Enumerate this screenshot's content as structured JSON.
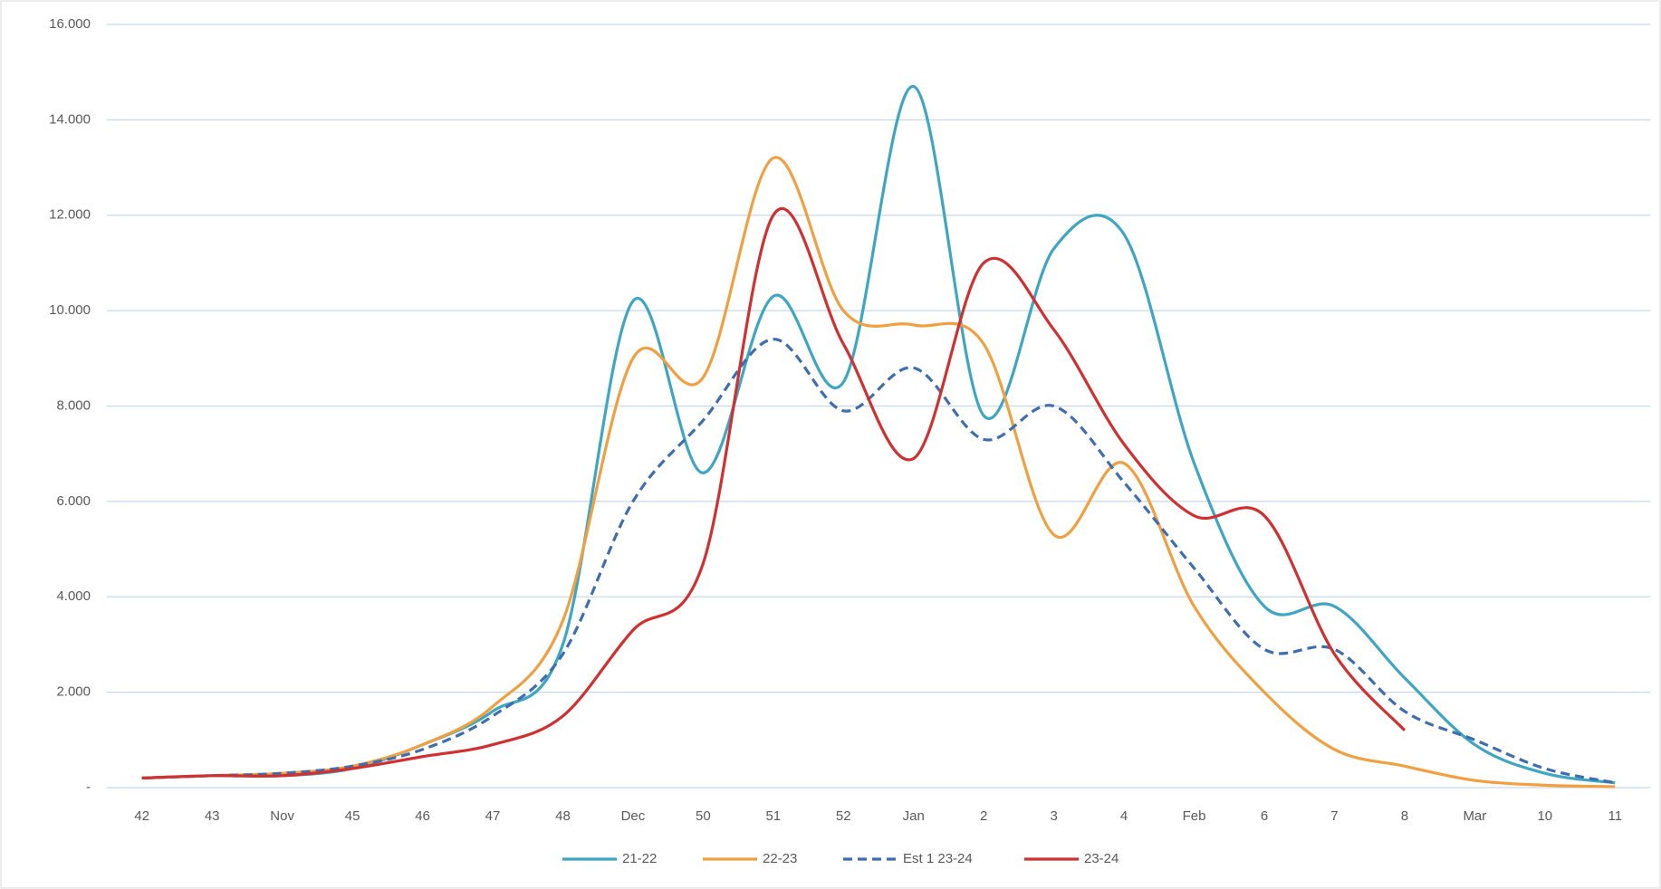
{
  "chart_data": {
    "type": "line",
    "categories": [
      "42",
      "43",
      "Nov",
      "45",
      "46",
      "47",
      "48",
      "Dec",
      "50",
      "51",
      "52",
      "Jan",
      "2",
      "3",
      "4",
      "Feb",
      "6",
      "7",
      "8",
      "Mar",
      "10",
      "11"
    ],
    "series": [
      {
        "name": "21-22",
        "color": "#3ea6c2",
        "dash": false,
        "values": [
          200,
          250,
          250,
          400,
          900,
          1600,
          3000,
          10200,
          6600,
          10300,
          8500,
          14700,
          7800,
          11300,
          11600,
          6800,
          3800,
          3800,
          2300,
          900,
          300,
          100
        ]
      },
      {
        "name": "22-23",
        "color": "#f0a040",
        "dash": false,
        "values": [
          200,
          250,
          300,
          450,
          900,
          1700,
          3500,
          9000,
          8600,
          13200,
          10000,
          9700,
          9300,
          5300,
          6800,
          3800,
          2000,
          800,
          450,
          150,
          50,
          20
        ]
      },
      {
        "name": "Est 1 23-24",
        "color": "#3e6db0",
        "dash": true,
        "values": [
          200,
          250,
          300,
          450,
          800,
          1500,
          2800,
          6000,
          7700,
          9400,
          7900,
          8800,
          7300,
          8000,
          6400,
          4600,
          2900,
          2900,
          1600,
          1000,
          400,
          100
        ]
      },
      {
        "name": "23-24",
        "color": "#d03030",
        "dash": false,
        "values": [
          200,
          250,
          250,
          400,
          650,
          900,
          1500,
          3300,
          4700,
          12000,
          9300,
          6900,
          11000,
          9600,
          7200,
          5700,
          5700,
          2800,
          1200,
          null,
          null,
          null
        ]
      }
    ],
    "ylim": [
      0,
      16000
    ],
    "yticks": [
      {
        "value": 0,
        "label": "-"
      },
      {
        "value": 2000,
        "label": "2.000"
      },
      {
        "value": 4000,
        "label": "4.000"
      },
      {
        "value": 6000,
        "label": "6.000"
      },
      {
        "value": 8000,
        "label": "8.000"
      },
      {
        "value": 10000,
        "label": "10.000"
      },
      {
        "value": 12000,
        "label": "12.000"
      },
      {
        "value": 14000,
        "label": "14.000"
      },
      {
        "value": 16000,
        "label": "16.000"
      }
    ],
    "grid": true,
    "legend": "bottom"
  }
}
